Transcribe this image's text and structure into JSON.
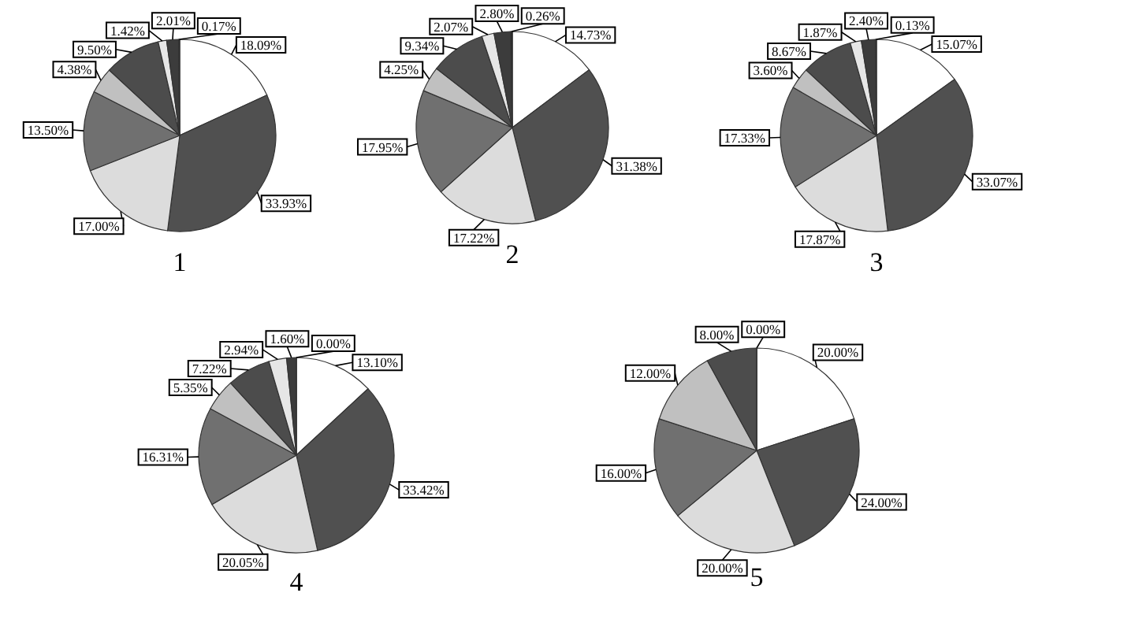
{
  "chart_data": [
    {
      "type": "pie",
      "title": "1",
      "categories": [
        null,
        null,
        null,
        null,
        null,
        null,
        null,
        null,
        null
      ],
      "values": [
        18.09,
        33.93,
        17.0,
        13.5,
        4.38,
        9.5,
        1.42,
        2.01,
        0.17
      ],
      "value_labels": [
        "18.09%",
        "33.93%",
        "17.00%",
        "13.50%",
        "4.38%",
        "9.50%",
        "1.42%",
        "2.01%",
        "0.17%"
      ],
      "colors": [
        "#ffffff",
        "#505050",
        "#dcdcdc",
        "#707070",
        "#c0c0c0",
        "#4c4c4c",
        "#e6e6e6",
        "#3c3c3c",
        "#1e1e1e"
      ]
    },
    {
      "type": "pie",
      "title": "2",
      "categories": [
        null,
        null,
        null,
        null,
        null,
        null,
        null,
        null,
        null
      ],
      "values": [
        14.73,
        31.38,
        17.22,
        17.95,
        4.25,
        9.34,
        2.07,
        2.8,
        0.26
      ],
      "value_labels": [
        "14.73%",
        "31.38%",
        "17.22%",
        "17.95%",
        "4.25%",
        "9.34%",
        "2.07%",
        "2.80%",
        "0.26%"
      ],
      "colors": [
        "#ffffff",
        "#505050",
        "#dcdcdc",
        "#707070",
        "#c0c0c0",
        "#4c4c4c",
        "#e6e6e6",
        "#3c3c3c",
        "#1e1e1e"
      ]
    },
    {
      "type": "pie",
      "title": "3",
      "categories": [
        null,
        null,
        null,
        null,
        null,
        null,
        null,
        null,
        null
      ],
      "values": [
        15.07,
        33.07,
        17.87,
        17.33,
        3.6,
        8.67,
        1.87,
        2.4,
        0.13
      ],
      "value_labels": [
        "15.07%",
        "33.07%",
        "17.87%",
        "17.33%",
        "3.60%",
        "8.67%",
        "1.87%",
        "2.40%",
        "0.13%"
      ],
      "colors": [
        "#ffffff",
        "#505050",
        "#dcdcdc",
        "#707070",
        "#c0c0c0",
        "#4c4c4c",
        "#e6e6e6",
        "#3c3c3c",
        "#1e1e1e"
      ]
    },
    {
      "type": "pie",
      "title": "4",
      "categories": [
        null,
        null,
        null,
        null,
        null,
        null,
        null,
        null,
        null
      ],
      "values": [
        13.1,
        33.42,
        20.05,
        16.31,
        5.35,
        7.22,
        2.94,
        1.6,
        0.0
      ],
      "value_labels": [
        "13.10%",
        "33.42%",
        "20.05%",
        "16.31%",
        "5.35%",
        "7.22%",
        "2.94%",
        "1.60%",
        "0.00%"
      ],
      "colors": [
        "#ffffff",
        "#505050",
        "#dcdcdc",
        "#707070",
        "#c0c0c0",
        "#4c4c4c",
        "#e6e6e6",
        "#3c3c3c",
        "#1e1e1e"
      ]
    },
    {
      "type": "pie",
      "title": "5",
      "categories": [
        null,
        null,
        null,
        null,
        null,
        null,
        null
      ],
      "values": [
        20.0,
        24.0,
        20.0,
        16.0,
        12.0,
        8.0,
        0.0
      ],
      "value_labels": [
        "20.00%",
        "24.00%",
        "20.00%",
        "16.00%",
        "12.00%",
        "8.00%",
        "0.00%"
      ],
      "colors": [
        "#ffffff",
        "#505050",
        "#dcdcdc",
        "#707070",
        "#c0c0c0",
        "#4c4c4c",
        "#e6e6e6"
      ]
    }
  ]
}
